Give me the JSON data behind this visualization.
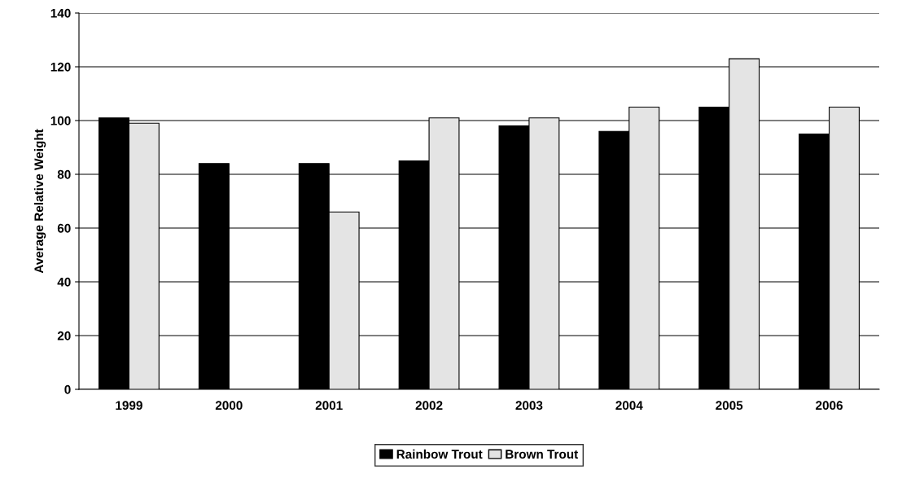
{
  "chart_data": {
    "type": "bar",
    "ylabel": "Average Relative Weight",
    "categories": [
      "1999",
      "2000",
      "2001",
      "2002",
      "2003",
      "2004",
      "2005",
      "2006"
    ],
    "series": [
      {
        "name": "Rainbow Trout",
        "color": "#000000",
        "values": [
          101,
          84,
          84,
          85,
          98,
          96,
          105,
          95
        ]
      },
      {
        "name": "Brown Trout",
        "color": "#e4e4e4",
        "values": [
          99,
          null,
          66,
          101,
          101,
          105,
          123,
          105
        ]
      }
    ],
    "ylim": [
      0,
      140
    ],
    "yticks": [
      0,
      20,
      40,
      60,
      80,
      100,
      120,
      140
    ],
    "grid": "y",
    "legend": "bottom"
  }
}
